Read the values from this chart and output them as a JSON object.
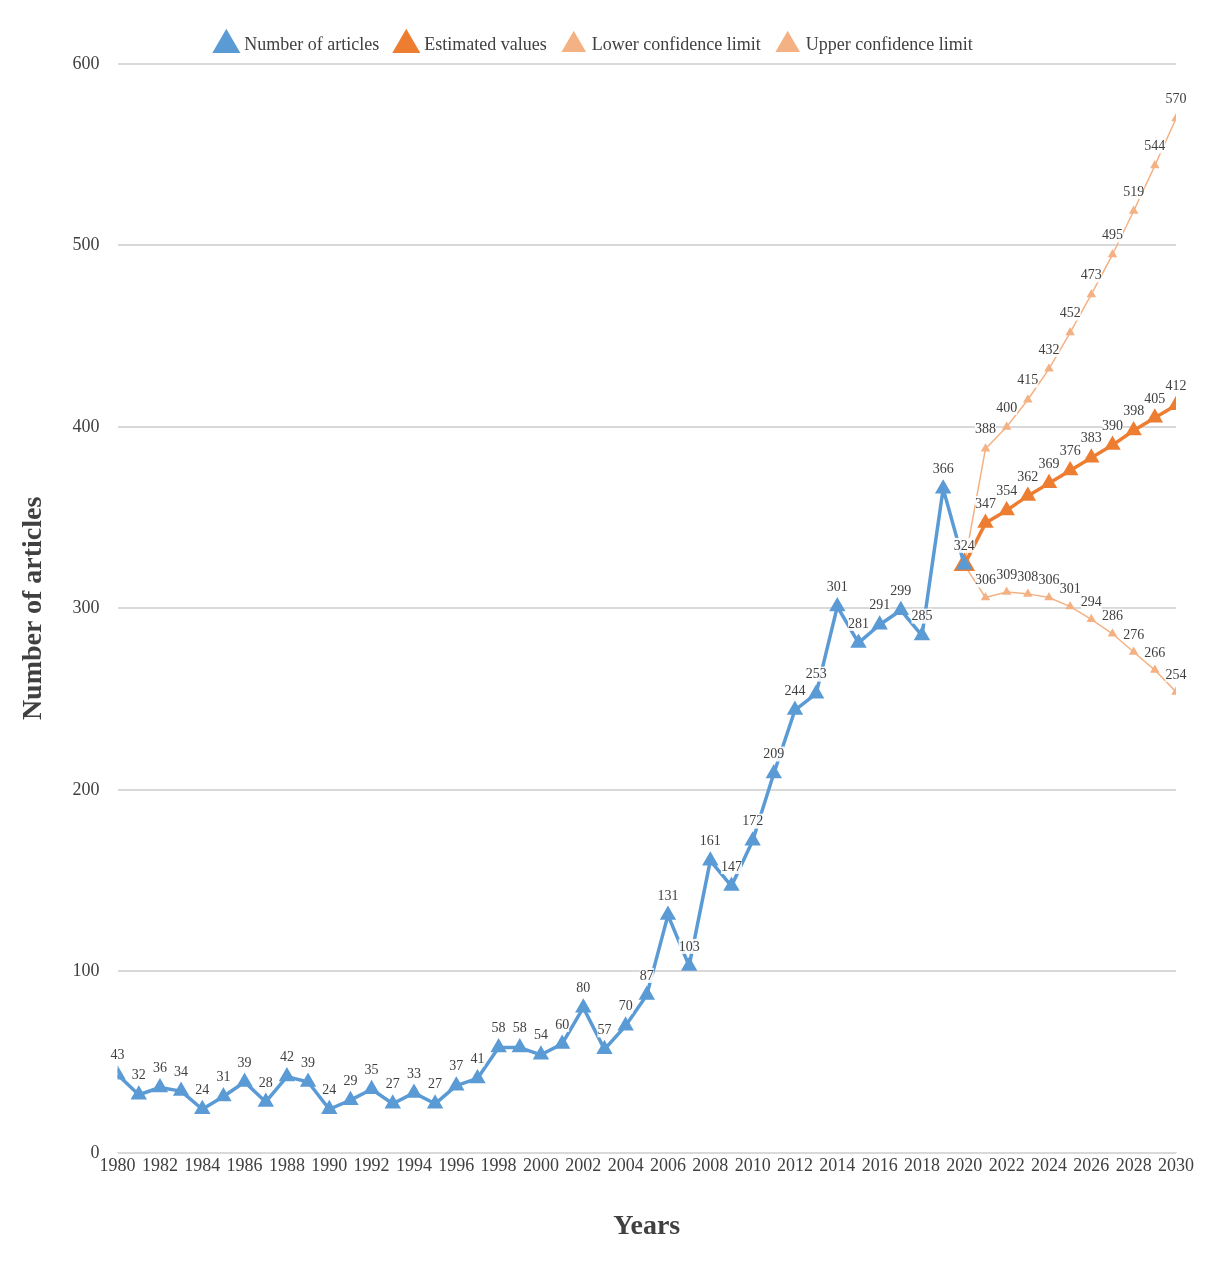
{
  "chart_data": {
    "type": "line",
    "xlabel": "Years",
    "ylabel": "Number of articles",
    "x": [
      1980,
      1981,
      1982,
      1983,
      1984,
      1985,
      1986,
      1987,
      1988,
      1989,
      1990,
      1991,
      1992,
      1993,
      1994,
      1995,
      1996,
      1997,
      1998,
      1999,
      2000,
      2001,
      2002,
      2003,
      2004,
      2005,
      2006,
      2007,
      2008,
      2009,
      2010,
      2011,
      2012,
      2013,
      2014,
      2015,
      2016,
      2017,
      2018,
      2019,
      2020
    ],
    "xlim": [
      1980,
      2030
    ],
    "xticks": [
      1980,
      1982,
      1984,
      1986,
      1988,
      1990,
      1992,
      1994,
      1996,
      1998,
      2000,
      2002,
      2004,
      2006,
      2008,
      2010,
      2012,
      2014,
      2016,
      2018,
      2020,
      2022,
      2024,
      2026,
      2028,
      2030
    ],
    "ylim": [
      0,
      600
    ],
    "yticks": [
      0,
      100,
      200,
      300,
      400,
      500,
      600
    ],
    "grid": "y",
    "legend": "top",
    "marker": "triangle",
    "line_style": "solid",
    "data_labels": true,
    "series": [
      {
        "name": "Number of articles",
        "color": "#5b9bd5",
        "values": [
          43,
          32,
          36,
          34,
          24,
          31,
          39,
          28,
          42,
          39,
          24,
          29,
          35,
          27,
          33,
          27,
          37,
          41,
          58,
          58,
          54,
          60,
          80,
          57,
          70,
          87,
          131,
          103,
          161,
          147,
          172,
          209,
          244,
          253,
          301,
          281,
          291,
          299,
          285,
          366,
          324
        ]
      },
      {
        "name": "Estimated values",
        "color": "#ed7d31",
        "x": [
          2020,
          2021,
          2022,
          2023,
          2024,
          2025,
          2026,
          2027,
          2028,
          2029,
          2030
        ],
        "values": [
          324,
          347,
          354,
          362,
          369,
          376,
          383,
          390,
          398,
          405,
          412
        ],
        "value_labels": [
          null,
          "347",
          "354",
          "362",
          "369",
          "376",
          "383",
          "390",
          "398",
          "405",
          "412"
        ]
      },
      {
        "name": "Lower confidence limit",
        "color": "#f4b183",
        "x": [
          2020,
          2021,
          2022,
          2023,
          2024,
          2025,
          2026,
          2027,
          2028,
          2029,
          2030
        ],
        "values": [
          324,
          306,
          309,
          308,
          306,
          301,
          294,
          286,
          276,
          266,
          254
        ],
        "value_labels": [
          null,
          "306",
          "309",
          "308",
          "306",
          "301",
          "294",
          "286",
          "276",
          "266",
          "254"
        ]
      },
      {
        "name": "Upper confidence limit",
        "color": "#f4b183",
        "x": [
          2020,
          2021,
          2022,
          2023,
          2024,
          2025,
          2026,
          2027,
          2028,
          2029,
          2030
        ],
        "values": [
          324,
          388,
          400,
          415,
          432,
          452,
          473,
          495,
          519,
          544,
          570
        ],
        "value_labels": [
          null,
          "388",
          "400",
          "415",
          "432",
          "452",
          "473",
          "495",
          "519",
          "544",
          "570"
        ]
      }
    ]
  }
}
